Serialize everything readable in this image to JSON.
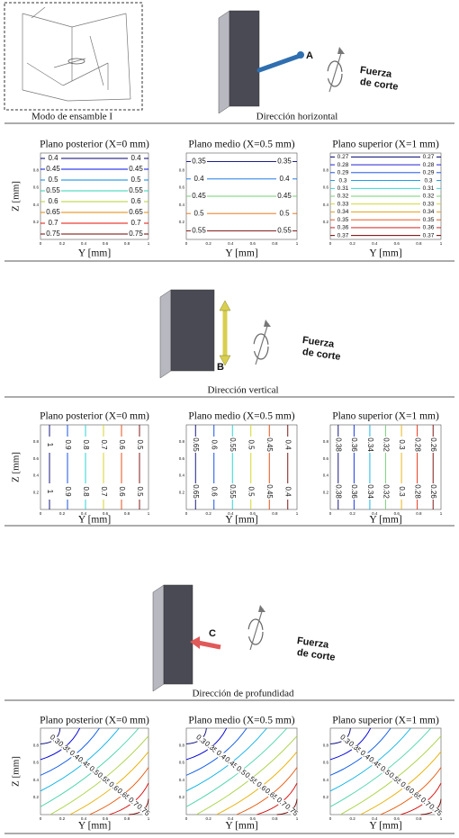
{
  "mode_caption": "Modo de ensamble I",
  "axes": {
    "xlabel": "Y [mm]",
    "ylabel": "Z [mm]",
    "xticks": [
      "0",
      "0.2",
      "0.4",
      "0.6",
      "0.8",
      "1"
    ],
    "yticks": [
      "0.2",
      "0.4",
      "0.6",
      "0.8"
    ]
  },
  "sections": [
    {
      "caption": "Dirección horizontal",
      "label": "A",
      "force": [
        "Fuerza",
        "de corte"
      ],
      "plots": [
        {
          "title": "Plano posterior (X=0 mm)",
          "levels": [
            "0.4",
            "0.45",
            "0.5",
            "0.55",
            "0.6",
            "0.65",
            "0.7",
            "0.75"
          ]
        },
        {
          "title": "Plano medio (X=0.5 mm)",
          "levels": [
            "0.35",
            "0.4",
            "0.45",
            "0.5",
            "0.55"
          ]
        },
        {
          "title": "Plano superior (X=1 mm)",
          "levels": [
            "0.27",
            "0.28",
            "0.29",
            "0.3",
            "0.31",
            "0.32",
            "0.33",
            "0.34",
            "0.35",
            "0.36",
            "0.37"
          ]
        }
      ]
    },
    {
      "caption": "Dirección vertical",
      "label": "B",
      "force": [
        "Fuerza",
        "de corte"
      ],
      "plots": [
        {
          "title": "Plano posterior (X=0 mm)",
          "levels": [
            "1",
            "0.9",
            "0.8",
            "0.7",
            "0.6",
            "0.5"
          ]
        },
        {
          "title": "Plano medio (X=0.5 mm)",
          "levels": [
            "0.65",
            "0.6",
            "0.55",
            "0.5",
            "0.45",
            "0.4"
          ]
        },
        {
          "title": "Plano superior (X=1 mm)",
          "levels": [
            "0.38",
            "0.36",
            "0.34",
            "0.32",
            "0.3",
            "0.28",
            "0.26"
          ]
        }
      ]
    },
    {
      "caption": "Dirección de profundidad",
      "label": "C",
      "force": [
        "Fuerza",
        "de corte"
      ],
      "plots": [
        {
          "title": "Plano posterior (X=0 mm)",
          "levels": [
            "0.3",
            "0.35",
            "0.4",
            "0.45",
            "0.5",
            "0.55",
            "0.6",
            "0.65",
            "0.7",
            "0.75"
          ]
        },
        {
          "title": "Plano medio (X=0.5 mm)",
          "levels": [
            "0.3",
            "0.35",
            "0.4",
            "0.45",
            "0.5",
            "0.55",
            "0.6",
            "0.65",
            "0.7",
            "0.75"
          ]
        },
        {
          "title": "Plano superior (X=1 mm)",
          "levels": [
            "0.3",
            "0.35",
            "0.4",
            "0.45",
            "0.5",
            "0.55",
            "0.6",
            "0.65",
            "0.7",
            "0.75"
          ]
        }
      ]
    }
  ]
}
